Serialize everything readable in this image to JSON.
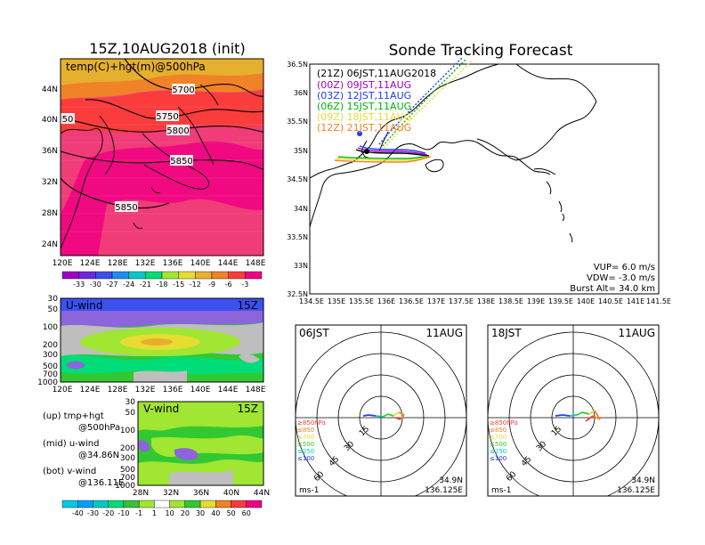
{
  "left_title": "15Z,10AUG2018 (init)",
  "right_title": "Sonde Tracking Forecast",
  "map500": {
    "label": "temp(C)+hgt(m)@500hPa",
    "lat_labels": [
      "44N",
      "40N",
      "36N",
      "32N",
      "28N",
      "24N"
    ],
    "lon_labels": [
      "120E",
      "124E",
      "128E",
      "132E",
      "136E",
      "140E",
      "144E",
      "148E"
    ],
    "contour_labels": [
      "5700",
      "5750",
      "5800",
      "5850",
      "5850",
      "50"
    ],
    "colorbar_labels": [
      "-33",
      "-30",
      "-27",
      "-24",
      "-21",
      "-18",
      "-15",
      "-12",
      "-9",
      "-6",
      "-3"
    ],
    "colorbar_colors": [
      "#a000c8",
      "#6e28dc",
      "#3c50f0",
      "#1e8cf0",
      "#00c8c8",
      "#00dc78",
      "#a0e632",
      "#e6dc32",
      "#e6af2d",
      "#f08228",
      "#fa3c3c",
      "#f00082"
    ]
  },
  "uwind": {
    "label": "U-wind",
    "time": "15Z",
    "levels": [
      "30",
      "50",
      "100",
      "200",
      "300",
      "500",
      "700",
      "1000"
    ],
    "lon_labels": [
      "120E",
      "124E",
      "128E",
      "132E",
      "136E",
      "140E",
      "144E",
      "148E"
    ]
  },
  "vwind": {
    "label": "V-wind",
    "time": "15Z",
    "levels": [
      "30",
      "50",
      "100",
      "200",
      "300",
      "500",
      "700",
      "1000"
    ],
    "lat_labels": [
      "28N",
      "32N",
      "36N",
      "40N",
      "44N"
    ]
  },
  "legend_notes": [
    {
      "a": "(up) tmp+hgt",
      "b": "@500hPa"
    },
    {
      "a": "(mid) u-wind",
      "b": "@34.86N"
    },
    {
      "a": "(bot) v-wind",
      "b": "@136.11E"
    }
  ],
  "wind_colorbar": {
    "labels": [
      "-40",
      "-30",
      "-20",
      "-10",
      "-1",
      "1",
      "10",
      "20",
      "30",
      "40",
      "50",
      "60"
    ],
    "colors": [
      "#00a0ff",
      "#00c8c8",
      "#00dc78",
      "#3cbe3c",
      "#a0e632",
      "#ffffff",
      "#a0e632",
      "#32c832",
      "#e6dc32",
      "#f08228",
      "#fa3c3c",
      "#f00082"
    ]
  },
  "track_map": {
    "lat_labels": [
      "36.5N",
      "36N",
      "35.5N",
      "35N",
      "34.5N",
      "34N",
      "33.5N",
      "33N",
      "32.5N"
    ],
    "lon_labels": [
      "134.5E",
      "135E",
      "135.5E",
      "136E",
      "136.5E",
      "137E",
      "137.5E",
      "138E",
      "138.5E",
      "139E",
      "139.5E",
      "140E",
      "140.5E",
      "141E",
      "141.5E"
    ],
    "launch_header": "(21Z)  06JST,11AUG2018",
    "launches": [
      {
        "label": "(00Z)  09JST,11AUG",
        "color": "#a000c8"
      },
      {
        "label": "(03Z)  12JST,11AUG",
        "color": "#1e3cf0"
      },
      {
        "label": "(06Z)  15JST,11AUG",
        "color": "#00b400"
      },
      {
        "label": "(09Z)  18JST,11AUG",
        "color": "#e6dc32"
      },
      {
        "label": "(12Z)  21JST,11AUG",
        "color": "#f08228"
      }
    ],
    "vup": "VUP=  6.0  m/s",
    "vdw": "VDW=  -3.0  m/s",
    "burst": "Burst Alt=  34.0  km"
  },
  "hodo_left": {
    "time": "06JST",
    "date": "11AUG",
    "lat": "34.9N",
    "lon": "136.125E",
    "unit": "ms-1",
    "ring_labels": [
      "15",
      "30",
      "45",
      "60"
    ],
    "level_legend": [
      {
        "label": "≥850hPa",
        "color": "#fa3c3c"
      },
      {
        "label": "≤850",
        "color": "#f08228"
      },
      {
        "label": "≤700",
        "color": "#e6dc32"
      },
      {
        "label": "≤500",
        "color": "#32c832"
      },
      {
        "label": "≤250",
        "color": "#00c8c8"
      },
      {
        "label": "≤100",
        "color": "#1e3cf0"
      }
    ]
  },
  "hodo_right": {
    "time": "18JST",
    "date": "11AUG",
    "lat": "34.9N",
    "lon": "136.125E",
    "unit": "ms-1",
    "ring_labels": [
      "15",
      "30",
      "45",
      "60"
    ],
    "level_legend": [
      {
        "label": "≥850hPa",
        "color": "#fa3c3c"
      },
      {
        "label": "≤850",
        "color": "#f08228"
      },
      {
        "label": "≤700",
        "color": "#e6dc32"
      },
      {
        "label": "≤500",
        "color": "#32c832"
      },
      {
        "label": "≤250",
        "color": "#00c8c8"
      },
      {
        "label": "≤100",
        "color": "#1e3cf0"
      }
    ]
  }
}
